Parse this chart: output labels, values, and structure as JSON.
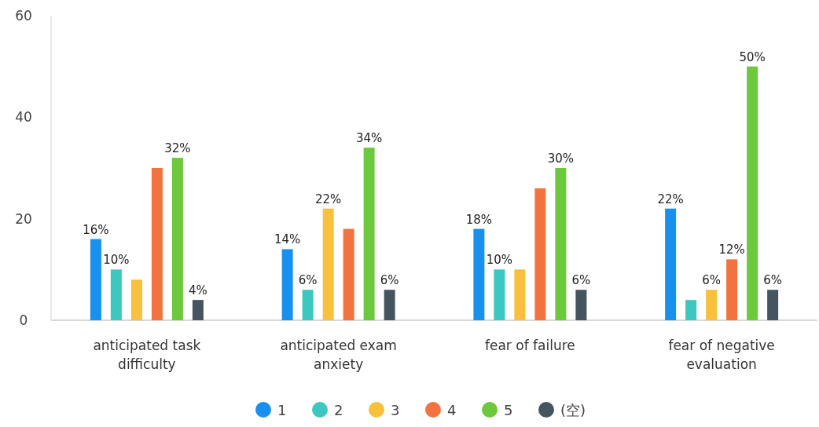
{
  "chart_data": {
    "type": "bar",
    "categories": [
      "anticipated task difficulty",
      "anticipated exam anxiety",
      "fear of failure",
      "fear of negative evaluation"
    ],
    "series": [
      {
        "name": "1",
        "color": "#1890f0",
        "values": [
          16,
          14,
          18,
          22
        ],
        "value_labels": [
          "16%",
          "14%",
          "18%",
          "22%"
        ]
      },
      {
        "name": "2",
        "color": "#3cc8c0",
        "values": [
          10,
          6,
          10,
          4
        ],
        "value_labels": [
          "10%",
          "6%",
          "10%",
          null
        ]
      },
      {
        "name": "3",
        "color": "#f8c03c",
        "values": [
          8,
          22,
          10,
          6
        ],
        "value_labels": [
          null,
          "22%",
          null,
          "6%"
        ]
      },
      {
        "name": "4",
        "color": "#f27340",
        "values": [
          30,
          18,
          26,
          12
        ],
        "value_labels": [
          null,
          null,
          null,
          "12%"
        ]
      },
      {
        "name": "5",
        "color": "#6cc83c",
        "values": [
          32,
          34,
          30,
          50
        ],
        "value_labels": [
          "32%",
          "34%",
          "30%",
          "50%"
        ]
      },
      {
        "name": "(空)",
        "color": "#455560",
        "values": [
          4,
          6,
          6,
          6
        ],
        "value_labels": [
          "4%",
          "6%",
          "6%",
          "6%"
        ]
      }
    ],
    "ylim": [
      0,
      60
    ],
    "yticks": [
      0,
      20,
      40,
      60
    ],
    "legend": "bottom"
  }
}
